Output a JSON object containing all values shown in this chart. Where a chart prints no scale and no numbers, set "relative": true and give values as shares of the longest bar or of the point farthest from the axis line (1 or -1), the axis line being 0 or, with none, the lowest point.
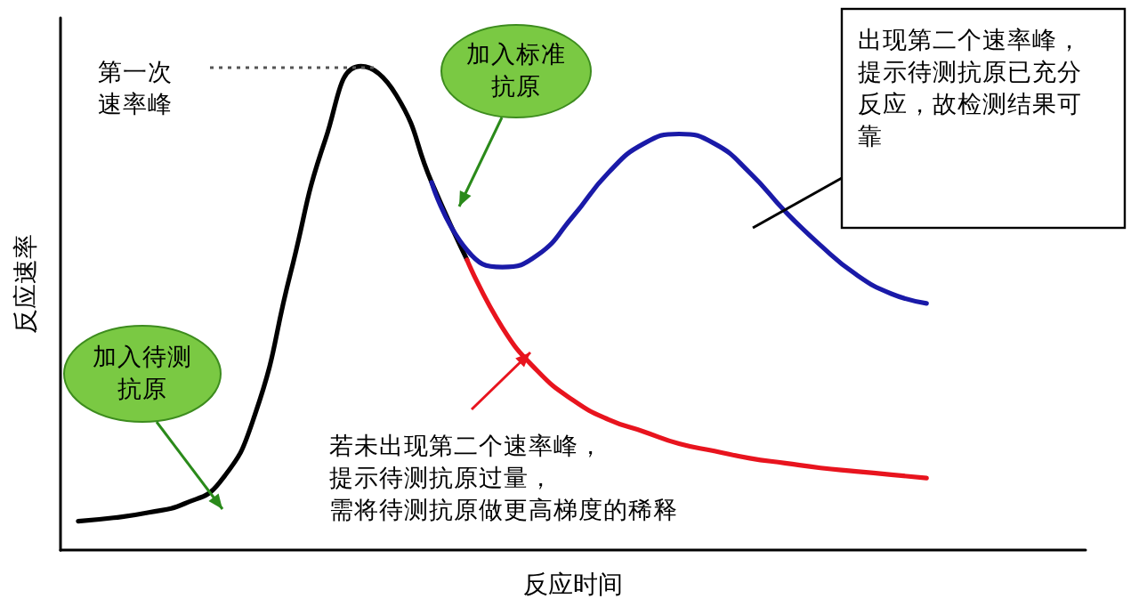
{
  "chart_data": {
    "type": "line",
    "relative": true,
    "xlabel": "反应时间",
    "ylabel": "反应速率",
    "grid": false,
    "marker": "none",
    "line_style": "solid",
    "categories": [
      null,
      null,
      null,
      null,
      null,
      null,
      null,
      null,
      null,
      null,
      null,
      null,
      null,
      null,
      null,
      null,
      null,
      null,
      null,
      null,
      null,
      null,
      null,
      null,
      null,
      null,
      null,
      null,
      null
    ],
    "series": [
      {
        "color": "#000000",
        "values": [
          0.06,
          0.067,
          0.078,
          0.096,
          0.14,
          0.28,
          0.57,
          0.85,
          1.0,
          0.94,
          0.76,
          0.6,
          null,
          null,
          null,
          null,
          null,
          null,
          null,
          null,
          null,
          null,
          null,
          null,
          null,
          null,
          null,
          null,
          null
        ]
      },
      {
        "color": "#1a1aa8",
        "values": [
          null,
          null,
          null,
          null,
          null,
          null,
          null,
          null,
          null,
          null,
          0.76,
          0.62,
          0.585,
          0.61,
          0.69,
          0.78,
          0.84,
          0.86,
          0.84,
          0.78,
          0.7,
          0.63,
          0.57,
          0.53,
          0.51,
          null,
          null,
          null,
          null
        ]
      },
      {
        "color": "#e8141e",
        "values": [
          null,
          null,
          null,
          null,
          null,
          null,
          null,
          null,
          null,
          null,
          null,
          0.6,
          0.46,
          0.37,
          0.31,
          0.27,
          0.245,
          0.22,
          0.205,
          0.19,
          0.18,
          0.17,
          0.163,
          0.156,
          0.149,
          null,
          null,
          null,
          null
        ]
      }
    ],
    "annotations": [
      "第一次速率峰",
      "加入标准抗原",
      "出现第二个速率峰，提示待测抗原已充分反应，故检测结果可靠",
      "加入待测抗原",
      "若未出现第二个速率峰，提示待测抗原过量，需将待测抗原做更高梯度的稀释"
    ]
  }
}
